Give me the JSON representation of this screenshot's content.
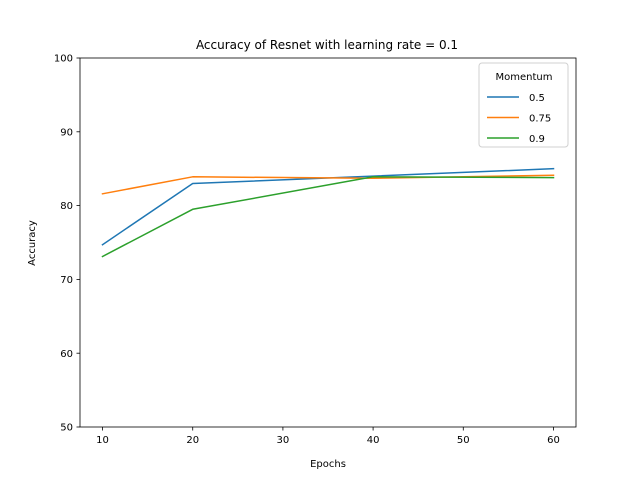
{
  "chart_data": {
    "type": "line",
    "title": "Accuracy of Resnet with learning rate = 0.1",
    "xlabel": "Epochs",
    "ylabel": "Accuracy",
    "x": [
      10,
      20,
      40,
      60
    ],
    "xlim": [
      7.5,
      62.5
    ],
    "ylim": [
      50,
      100
    ],
    "xticks": [
      "10",
      "20",
      "30",
      "40",
      "50",
      "60"
    ],
    "yticks": [
      "50",
      "60",
      "70",
      "80",
      "90",
      "100"
    ],
    "grid": false,
    "legend": {
      "title": "Momentum",
      "placement": "top-right"
    },
    "series": [
      {
        "name": "0.5",
        "color": "#1f77b4",
        "values": [
          74.7,
          83.0,
          84.0,
          85.0
        ]
      },
      {
        "name": "0.75",
        "color": "#ff7f0e",
        "values": [
          81.6,
          83.9,
          83.7,
          84.1
        ]
      },
      {
        "name": "0.9",
        "color": "#2ca02c",
        "values": [
          73.1,
          79.5,
          83.9,
          83.8
        ]
      }
    ]
  }
}
